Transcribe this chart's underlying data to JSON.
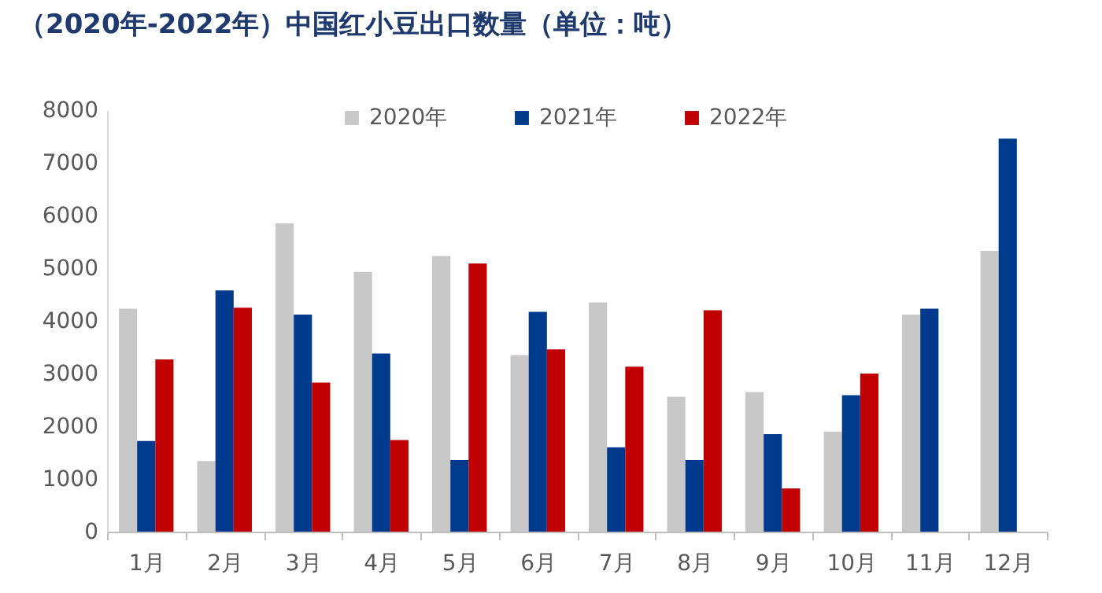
{
  "chart_data": {
    "type": "bar",
    "title": "（2020年-2022年）中国红小豆出口数量（单位：吨）",
    "categories": [
      "1月",
      "2月",
      "3月",
      "4月",
      "5月",
      "6月",
      "7月",
      "8月",
      "9月",
      "10月",
      "11月",
      "12月"
    ],
    "series": [
      {
        "name": "2020年",
        "color": "#c8c8c8",
        "values": [
          4230,
          1340,
          5850,
          4930,
          5230,
          3350,
          4350,
          2560,
          2650,
          1900,
          4120,
          5330
        ]
      },
      {
        "name": "2021年",
        "color": "#003a8c",
        "values": [
          1720,
          4580,
          4120,
          3380,
          1360,
          4170,
          1600,
          1360,
          1850,
          2590,
          4230,
          7460
        ]
      },
      {
        "name": "2022年",
        "color": "#c00000",
        "values": [
          3270,
          4250,
          2830,
          1740,
          5090,
          3460,
          3130,
          4200,
          820,
          3000,
          null,
          null
        ]
      }
    ],
    "ylim": [
      0,
      8000
    ],
    "yticks": [
      0,
      1000,
      2000,
      3000,
      4000,
      5000,
      6000,
      7000,
      8000
    ],
    "grid": false,
    "legend": "top"
  }
}
